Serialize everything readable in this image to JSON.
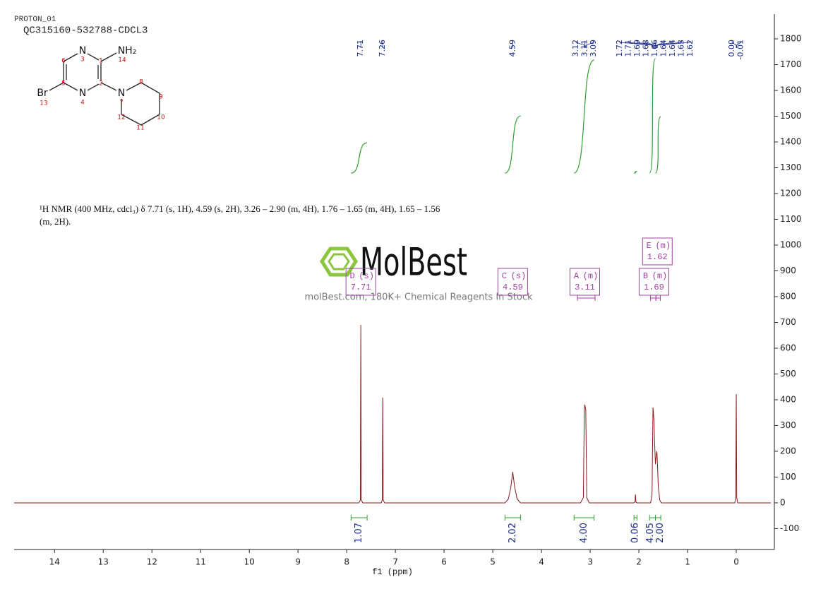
{
  "header": {
    "experiment": "PROTON_01",
    "sample": "QC315160-532788-CDCL3"
  },
  "structure": {
    "atoms": [
      "N",
      "NH₂",
      "Br",
      "N",
      "N"
    ],
    "atom_numbers": [
      6,
      3,
      1,
      14,
      5,
      2,
      8,
      9,
      13,
      4,
      7,
      12,
      10,
      11
    ]
  },
  "description": "¹H NMR (400 MHz, cdcl₃) δ 7.71 (s, 1H), 4.59 (s, 2H), 3.26 – 2.90 (m, 4H), 1.76 – 1.65 (m, 4H), 1.65 – 1.56 (m, 2H).",
  "watermark": {
    "brand": "MolBest",
    "tagline": "molBest.com, 180K+ Chemical Reagents In Stock"
  },
  "chart_data": {
    "type": "line",
    "x_label": "f1 (ppm)",
    "x": [
      14.83,
      7.75,
      7.72,
      7.71,
      7.7,
      7.67,
      7.29,
      7.27,
      7.26,
      7.25,
      7.22,
      4.75,
      4.68,
      4.63,
      4.59,
      4.55,
      4.5,
      4.43,
      3.2,
      3.14,
      3.12,
      3.11,
      3.09,
      3.07,
      3.02,
      2.1,
      2.08,
      2.07,
      2.06,
      2.04,
      1.76,
      1.73,
      1.72,
      1.71,
      1.69,
      1.68,
      1.66,
      1.64,
      1.63,
      1.62,
      1.6,
      1.57,
      1.54,
      0.03,
      0.01,
      0,
      -0.01,
      -0.03,
      -0.71
    ],
    "values": [
      0,
      0,
      10,
      690,
      10,
      0,
      0,
      10,
      408,
      10,
      0,
      0,
      15,
      60,
      120,
      60,
      15,
      0,
      0,
      20,
      360,
      381,
      360,
      20,
      0,
      0,
      3,
      33,
      3,
      0,
      0,
      30,
      200,
      370,
      320,
      250,
      150,
      190,
      200,
      160,
      60,
      10,
      0,
      0,
      20,
      422,
      20,
      0,
      0
    ],
    "color": "#8b1a1a",
    "xlim": [
      14.83,
      -0.71
    ],
    "xticks": [
      14,
      13,
      12,
      11,
      10,
      9,
      8,
      7,
      6,
      5,
      4,
      3,
      2,
      1,
      0
    ],
    "ylim": [
      -181,
      1896
    ],
    "yticks": [
      -100,
      0,
      100,
      200,
      300,
      400,
      500,
      600,
      700,
      800,
      900,
      1000,
      1100,
      1200,
      1300,
      1400,
      1500,
      1600,
      1700,
      1800
    ],
    "peak_labels": [
      7.71,
      7.26,
      4.59,
      3.12,
      3.11,
      3.09,
      1.72,
      1.71,
      1.69,
      1.68,
      1.66,
      1.64,
      1.64,
      1.63,
      1.62,
      {
        "value": 0,
        "label": "0.00"
      },
      -0.01
    ],
    "peak_label_color": "#1a2a8a",
    "multiplets": [
      {
        "name": "D",
        "multiplicity": "(s)",
        "shift": 7.71
      },
      {
        "name": "C",
        "multiplicity": "(s)",
        "shift": 4.59
      },
      {
        "name": "A",
        "multiplicity": "(m)",
        "shift": 3.11,
        "range": [
          3.26,
          2.9
        ]
      },
      {
        "name": "B",
        "multiplicity": "(m)",
        "shift": 1.69,
        "range": [
          1.76,
          1.65
        ]
      },
      {
        "name": "E",
        "multiplicity": "(m)",
        "shift": 1.62,
        "range": [
          1.65,
          1.56
        ]
      }
    ],
    "multiplet_color": "#a040a0",
    "integrals": [
      {
        "value": 1.07,
        "range": [
          7.91,
          7.58
        ]
      },
      {
        "value": 2.02,
        "range": [
          4.75,
          4.43
        ]
      },
      {
        "value": 4,
        "label": "4.00",
        "range": [
          3.33,
          2.92
        ]
      },
      {
        "value": 0.06,
        "range": [
          2.1,
          2.04
        ]
      },
      {
        "value": 4.05,
        "range": [
          1.78,
          1.66
        ]
      },
      {
        "value": 2,
        "label": "2.00",
        "range": [
          1.66,
          1.55
        ]
      }
    ],
    "integral_color": "#2e9e2e",
    "integral_label_color": "#1a2a8a"
  }
}
